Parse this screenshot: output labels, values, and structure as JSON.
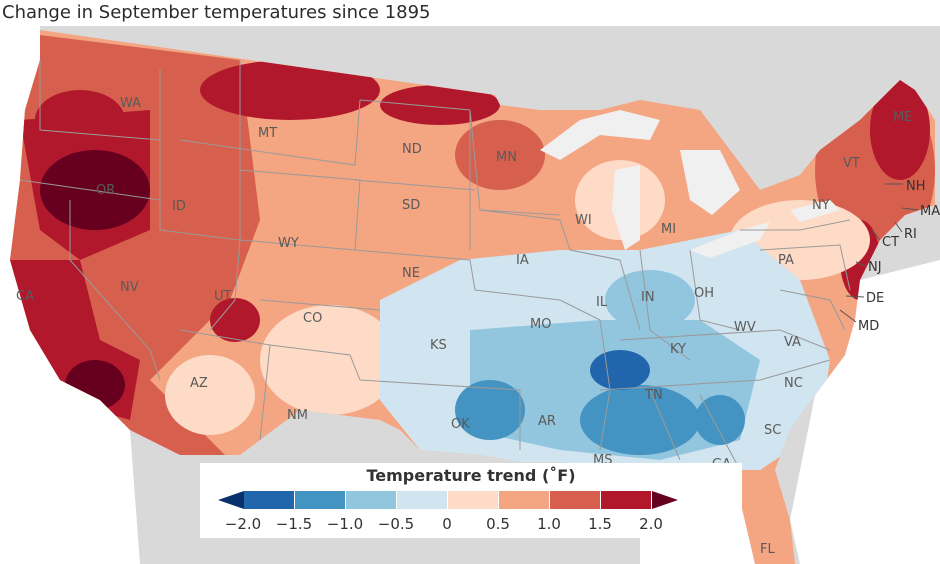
{
  "title": "Change in September temperatures since 1895",
  "map": {
    "states": [
      "WA",
      "OR",
      "CA",
      "ID",
      "NV",
      "MT",
      "WY",
      "UT",
      "AZ",
      "CO",
      "NM",
      "ND",
      "SD",
      "NE",
      "KS",
      "OK",
      "MN",
      "IA",
      "MO",
      "AR",
      "WI",
      "MI",
      "IL",
      "IN",
      "OH",
      "KY",
      "TN",
      "MS",
      "GA",
      "SC",
      "NC",
      "VA",
      "WV",
      "PA",
      "NY",
      "VT",
      "ME",
      "FL"
    ],
    "external_labels": [
      "NH",
      "MA",
      "RI",
      "CT",
      "NJ",
      "DE",
      "MD"
    ]
  },
  "legend": {
    "title": "Temperature trend (˚F)",
    "ticks": [
      "−2.0",
      "−1.5",
      "−1.0",
      "−0.5",
      "0",
      "0.5",
      "1.0",
      "1.5",
      "2.0"
    ],
    "colors": [
      "#08306b",
      "#2166ac",
      "#4393c3",
      "#92c5de",
      "#d1e5f0",
      "#fddbc7",
      "#f4a582",
      "#d6604d",
      "#b2182b",
      "#67001f"
    ]
  }
}
